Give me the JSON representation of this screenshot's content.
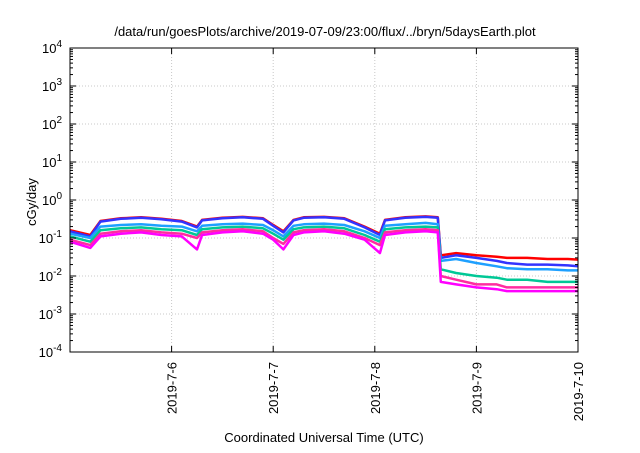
{
  "chart_data": {
    "type": "line",
    "title": "/data/run/goesPlots/archive/2019-07-09/23:00/flux/../bryn/5daysEarth.plot",
    "xlabel": "Coordinated Universal Time (UTC)",
    "ylabel": "cGy/day",
    "yscale": "log",
    "ylim": [
      0.0001,
      10000
    ],
    "xlim": [
      0,
      5
    ],
    "grid": true,
    "y_ticks": [
      {
        "base": "10",
        "exp": "-4",
        "value": 0.0001
      },
      {
        "base": "10",
        "exp": "-3",
        "value": 0.001
      },
      {
        "base": "10",
        "exp": "-2",
        "value": 0.01
      },
      {
        "base": "10",
        "exp": "-1",
        "value": 0.1
      },
      {
        "base": "10",
        "exp": "0",
        "value": 1
      },
      {
        "base": "10",
        "exp": "1",
        "value": 10
      },
      {
        "base": "10",
        "exp": "2",
        "value": 100
      },
      {
        "base": "10",
        "exp": "3",
        "value": 1000
      },
      {
        "base": "10",
        "exp": "4",
        "value": 10000
      }
    ],
    "x_ticks": [
      {
        "label": "2019-7-6",
        "x": 1
      },
      {
        "label": "2019-7-7",
        "x": 2
      },
      {
        "label": "2019-7-8",
        "x": 3
      },
      {
        "label": "2019-7-9",
        "x": 4
      },
      {
        "label": "2019-7-10",
        "x": 5
      }
    ],
    "series": [
      {
        "color": "#ff0000",
        "x": [
          0,
          0.2,
          0.3,
          0.5,
          0.7,
          0.9,
          1.1,
          1.25,
          1.3,
          1.5,
          1.7,
          1.9,
          2.0,
          2.1,
          2.2,
          2.3,
          2.5,
          2.7,
          2.9,
          3.05,
          3.1,
          3.3,
          3.5,
          3.62,
          3.65,
          3.8,
          4.0,
          4.2,
          4.3,
          4.5,
          4.7,
          4.9,
          5.0
        ],
        "values": [
          0.16,
          0.12,
          0.28,
          0.33,
          0.35,
          0.32,
          0.28,
          0.2,
          0.3,
          0.34,
          0.36,
          0.33,
          0.22,
          0.15,
          0.3,
          0.35,
          0.36,
          0.33,
          0.2,
          0.13,
          0.3,
          0.35,
          0.37,
          0.35,
          0.035,
          0.04,
          0.035,
          0.032,
          0.03,
          0.03,
          0.028,
          0.028,
          0.027
        ]
      },
      {
        "color": "#3333ff",
        "x": [
          0,
          0.2,
          0.3,
          0.5,
          0.7,
          0.9,
          1.1,
          1.25,
          1.3,
          1.5,
          1.7,
          1.9,
          2.0,
          2.1,
          2.2,
          2.3,
          2.5,
          2.7,
          2.9,
          3.05,
          3.1,
          3.3,
          3.5,
          3.62,
          3.65,
          3.8,
          4.0,
          4.2,
          4.3,
          4.5,
          4.7,
          4.9,
          5.0
        ],
        "values": [
          0.15,
          0.11,
          0.27,
          0.32,
          0.34,
          0.31,
          0.27,
          0.19,
          0.29,
          0.33,
          0.35,
          0.32,
          0.21,
          0.14,
          0.29,
          0.34,
          0.35,
          0.32,
          0.19,
          0.12,
          0.29,
          0.34,
          0.36,
          0.34,
          0.03,
          0.035,
          0.03,
          0.025,
          0.022,
          0.02,
          0.02,
          0.019,
          0.018
        ]
      },
      {
        "color": "#1ea0ff",
        "x": [
          0,
          0.2,
          0.3,
          0.5,
          0.7,
          0.9,
          1.1,
          1.25,
          1.3,
          1.5,
          1.7,
          1.9,
          2.0,
          2.1,
          2.2,
          2.3,
          2.5,
          2.7,
          2.9,
          3.05,
          3.1,
          3.3,
          3.5,
          3.62,
          3.65,
          3.8,
          4.0,
          4.2,
          4.3,
          4.5,
          4.7,
          4.9,
          5.0
        ],
        "values": [
          0.13,
          0.1,
          0.2,
          0.22,
          0.23,
          0.21,
          0.2,
          0.15,
          0.21,
          0.23,
          0.24,
          0.22,
          0.16,
          0.11,
          0.21,
          0.23,
          0.24,
          0.22,
          0.15,
          0.1,
          0.21,
          0.23,
          0.25,
          0.23,
          0.025,
          0.028,
          0.022,
          0.018,
          0.016,
          0.015,
          0.015,
          0.014,
          0.014
        ]
      },
      {
        "color": "#00c896",
        "x": [
          0,
          0.2,
          0.3,
          0.5,
          0.7,
          0.9,
          1.1,
          1.25,
          1.3,
          1.5,
          1.7,
          1.9,
          2.0,
          2.1,
          2.2,
          2.3,
          2.5,
          2.7,
          2.9,
          3.05,
          3.1,
          3.3,
          3.5,
          3.62,
          3.65,
          3.8,
          4.0,
          4.2,
          4.3,
          4.5,
          4.7,
          4.9,
          5.0
        ],
        "values": [
          0.11,
          0.08,
          0.16,
          0.18,
          0.19,
          0.17,
          0.16,
          0.12,
          0.17,
          0.19,
          0.2,
          0.18,
          0.13,
          0.09,
          0.17,
          0.19,
          0.2,
          0.18,
          0.12,
          0.08,
          0.17,
          0.19,
          0.2,
          0.19,
          0.015,
          0.012,
          0.01,
          0.009,
          0.008,
          0.008,
          0.007,
          0.007,
          0.007
        ]
      },
      {
        "color": "#ff2ca0",
        "x": [
          0,
          0.2,
          0.3,
          0.5,
          0.7,
          0.9,
          1.1,
          1.25,
          1.3,
          1.5,
          1.7,
          1.9,
          2.0,
          2.1,
          2.2,
          2.3,
          2.5,
          2.7,
          2.9,
          3.05,
          3.1,
          3.3,
          3.5,
          3.62,
          3.65,
          3.8,
          4.0,
          4.2,
          4.3,
          4.5,
          4.7,
          4.9,
          5.0
        ],
        "values": [
          0.09,
          0.065,
          0.13,
          0.15,
          0.16,
          0.14,
          0.13,
          0.1,
          0.14,
          0.16,
          0.17,
          0.15,
          0.1,
          0.07,
          0.14,
          0.16,
          0.17,
          0.15,
          0.1,
          0.065,
          0.14,
          0.16,
          0.17,
          0.16,
          0.01,
          0.008,
          0.006,
          0.006,
          0.005,
          0.005,
          0.005,
          0.005,
          0.005
        ]
      },
      {
        "color": "#ff00ff",
        "x": [
          0,
          0.2,
          0.3,
          0.5,
          0.7,
          0.9,
          1.1,
          1.25,
          1.3,
          1.5,
          1.7,
          1.9,
          2.0,
          2.1,
          2.2,
          2.3,
          2.5,
          2.7,
          2.9,
          3.05,
          3.1,
          3.3,
          3.5,
          3.62,
          3.65,
          3.8,
          4.0,
          4.2,
          4.3,
          4.5,
          4.7,
          4.9,
          5.0
        ],
        "values": [
          0.08,
          0.055,
          0.11,
          0.13,
          0.14,
          0.12,
          0.11,
          0.05,
          0.12,
          0.14,
          0.15,
          0.13,
          0.09,
          0.05,
          0.12,
          0.14,
          0.15,
          0.13,
          0.09,
          0.04,
          0.12,
          0.14,
          0.15,
          0.14,
          0.007,
          0.006,
          0.005,
          0.0045,
          0.004,
          0.004,
          0.004,
          0.004,
          0.004
        ]
      }
    ]
  }
}
